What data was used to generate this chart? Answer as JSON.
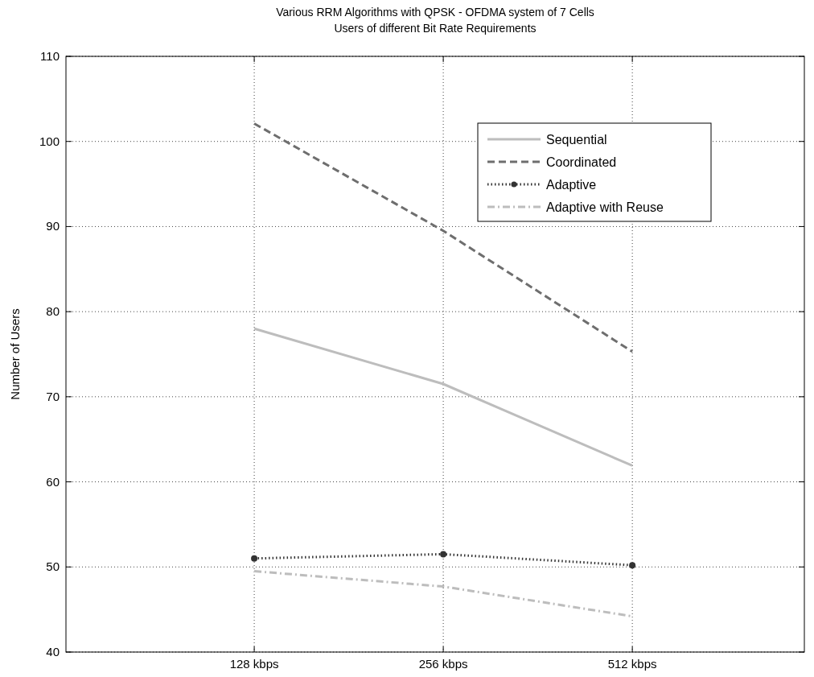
{
  "chart_data": {
    "type": "line",
    "title": "Various RRM Algorithms with QPSK - OFDMA system of 7 Cells",
    "subtitle": "Users of different Bit Rate Requirements",
    "ylabel": "Number of Users",
    "categories": [
      "128 kbps",
      "256 kbps",
      "512 kbps"
    ],
    "ylim": [
      40,
      110
    ],
    "yticks": [
      40,
      50,
      60,
      70,
      80,
      90,
      100,
      110
    ],
    "grid": true,
    "legend": "top right",
    "series": [
      {
        "name": "Sequential",
        "color": "#bdbdbd",
        "values": [
          78,
          71.5,
          61.9
        ],
        "line_style": "solid",
        "marker": "none"
      },
      {
        "name": "Coordinated",
        "color": "#6e6e6e",
        "values": [
          102.1,
          89.5,
          75.3
        ],
        "line_style": "dashed",
        "marker": "none"
      },
      {
        "name": "Adaptive",
        "color": "#333333",
        "values": [
          51,
          51.5,
          50.2
        ],
        "line_style": "dotted",
        "marker": "circle"
      },
      {
        "name": "Adaptive with Reuse",
        "color": "#bdbdbd",
        "values": [
          49.5,
          47.7,
          44.2
        ],
        "line_style": "dashdot",
        "marker": "none"
      }
    ]
  }
}
